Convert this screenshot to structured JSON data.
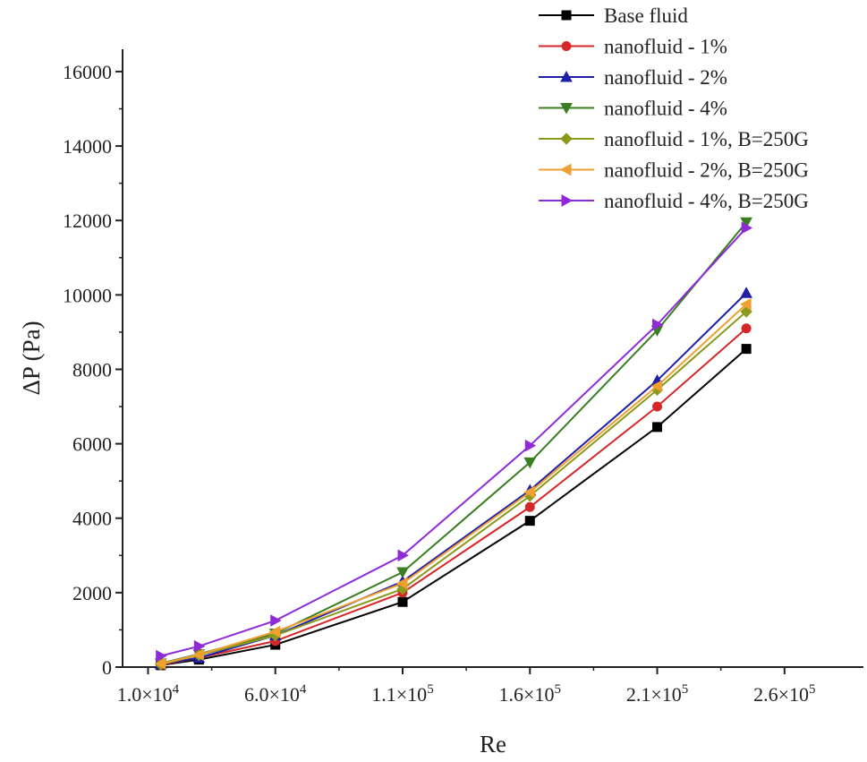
{
  "chart_data": {
    "type": "line",
    "title": "",
    "xlabel": "Re",
    "ylabel": "ΔP (Pa)",
    "x_tick_values": [
      10000,
      60000,
      110000,
      160000,
      210000,
      260000
    ],
    "x_tick_labels": [
      {
        "mantissa": "1.0×10",
        "exp": "4"
      },
      {
        "mantissa": "6.0×10",
        "exp": "4"
      },
      {
        "mantissa": "1.1×10",
        "exp": "5"
      },
      {
        "mantissa": "1.6×10",
        "exp": "5"
      },
      {
        "mantissa": "2.1×10",
        "exp": "5"
      },
      {
        "mantissa": "2.6×10",
        "exp": "5"
      }
    ],
    "y_ticks": [
      0,
      2000,
      4000,
      6000,
      8000,
      10000,
      12000,
      14000,
      16000
    ],
    "xlim": [
      0,
      291000
    ],
    "ylim": [
      0,
      16600
    ],
    "grid": false,
    "legend_position": "top-right",
    "x": [
      15000,
      30000,
      60000,
      110000,
      160000,
      210000,
      245000
    ],
    "series": [
      {
        "name": "Base fluid",
        "color": "#000000",
        "marker": "square",
        "values": [
          50,
          200,
          600,
          1750,
          3930,
          6450,
          8550
        ]
      },
      {
        "name": "nanofluid - 1%",
        "color": "#d62728",
        "marker": "circle",
        "values": [
          60,
          250,
          700,
          2000,
          4300,
          7000,
          9100
        ]
      },
      {
        "name": "nanofluid - 2%",
        "color": "#1f1fa8",
        "marker": "triangle-up",
        "values": [
          80,
          250,
          850,
          2300,
          4750,
          7700,
          10050
        ]
      },
      {
        "name": "nanofluid - 4%",
        "color": "#3a7d22",
        "marker": "triangle-down",
        "values": [
          100,
          350,
          900,
          2550,
          5500,
          9050,
          11950
        ]
      },
      {
        "name": "nanofluid - 1%, B=250G",
        "color": "#8a9a1a",
        "marker": "diamond",
        "values": [
          70,
          320,
          850,
          2100,
          4600,
          7450,
          9550
        ]
      },
      {
        "name": "nanofluid - 2%, B=250G",
        "color": "#f0a030",
        "marker": "triangle-left",
        "values": [
          90,
          330,
          950,
          2250,
          4700,
          7550,
          9750
        ]
      },
      {
        "name": "nanofluid - 4%, B=250G",
        "color": "#8e2bd6",
        "marker": "triangle-right",
        "values": [
          300,
          560,
          1250,
          3000,
          5950,
          9200,
          11800
        ]
      }
    ]
  }
}
